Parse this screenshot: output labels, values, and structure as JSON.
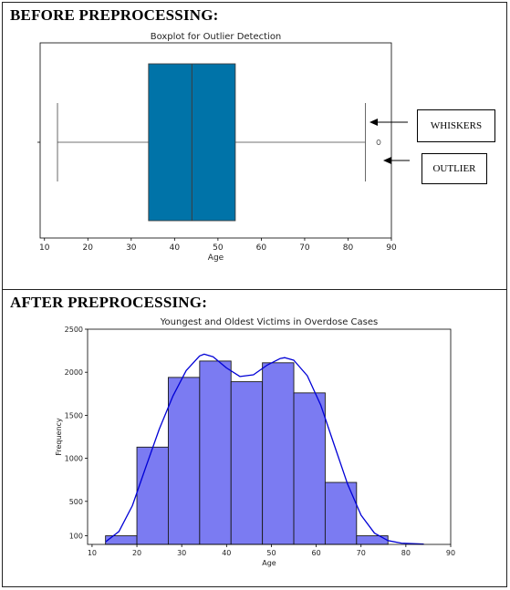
{
  "top_panel": {
    "heading": "BEFORE PREPROCESSING:",
    "callouts": {
      "whiskers": "WHISKERS",
      "outlier": "OUTLIER"
    }
  },
  "bottom_panel": {
    "heading": "AFTER PREPROCESSING:"
  },
  "colors": {
    "box_fill": "#0073a8",
    "hist_fill": "#7b7bf2",
    "kde_line": "#0000d6"
  },
  "chart_data": [
    {
      "type": "boxplot",
      "title": "Boxplot for Outlier Detection",
      "xlabel": "Age",
      "ylabel": "",
      "xlim": [
        9,
        90
      ],
      "xticks": [
        10,
        20,
        30,
        40,
        50,
        60,
        70,
        80,
        90
      ],
      "stats": {
        "whisker_low": 13,
        "q1": 34,
        "median": 44,
        "q3": 54,
        "whisker_high": 84
      },
      "outliers": [
        86
      ],
      "grid": false
    },
    {
      "type": "histogram",
      "title": "Youngest and Oldest Victims in Overdose Cases",
      "xlabel": "Age",
      "ylabel": "Frequency",
      "xlim": [
        9,
        90
      ],
      "ylim": [
        0,
        2500
      ],
      "xticks": [
        10,
        20,
        30,
        40,
        50,
        60,
        70,
        80,
        90
      ],
      "yticks": [
        100,
        500,
        1000,
        1500,
        2000,
        2500
      ],
      "bins": [
        {
          "x0": 13,
          "x1": 20,
          "count": 100
        },
        {
          "x0": 20,
          "x1": 27,
          "count": 1130
        },
        {
          "x0": 27,
          "x1": 34,
          "count": 1940
        },
        {
          "x0": 34,
          "x1": 41,
          "count": 2130
        },
        {
          "x0": 41,
          "x1": 48,
          "count": 1890
        },
        {
          "x0": 48,
          "x1": 55,
          "count": 2110
        },
        {
          "x0": 55,
          "x1": 62,
          "count": 1760
        },
        {
          "x0": 62,
          "x1": 69,
          "count": 720
        },
        {
          "x0": 69,
          "x1": 76,
          "count": 100
        }
      ],
      "kde": {
        "x": [
          13,
          16,
          19,
          22,
          25,
          28,
          31,
          34,
          35,
          37,
          40,
          43,
          46,
          49,
          52,
          53,
          55,
          58,
          61,
          64,
          67,
          70,
          73,
          76,
          79,
          84
        ],
        "y": [
          30,
          150,
          450,
          900,
          1340,
          1720,
          2020,
          2190,
          2210,
          2180,
          2050,
          1950,
          1970,
          2080,
          2160,
          2170,
          2140,
          1960,
          1620,
          1160,
          700,
          340,
          130,
          45,
          15,
          3
        ]
      },
      "grid": false
    }
  ]
}
